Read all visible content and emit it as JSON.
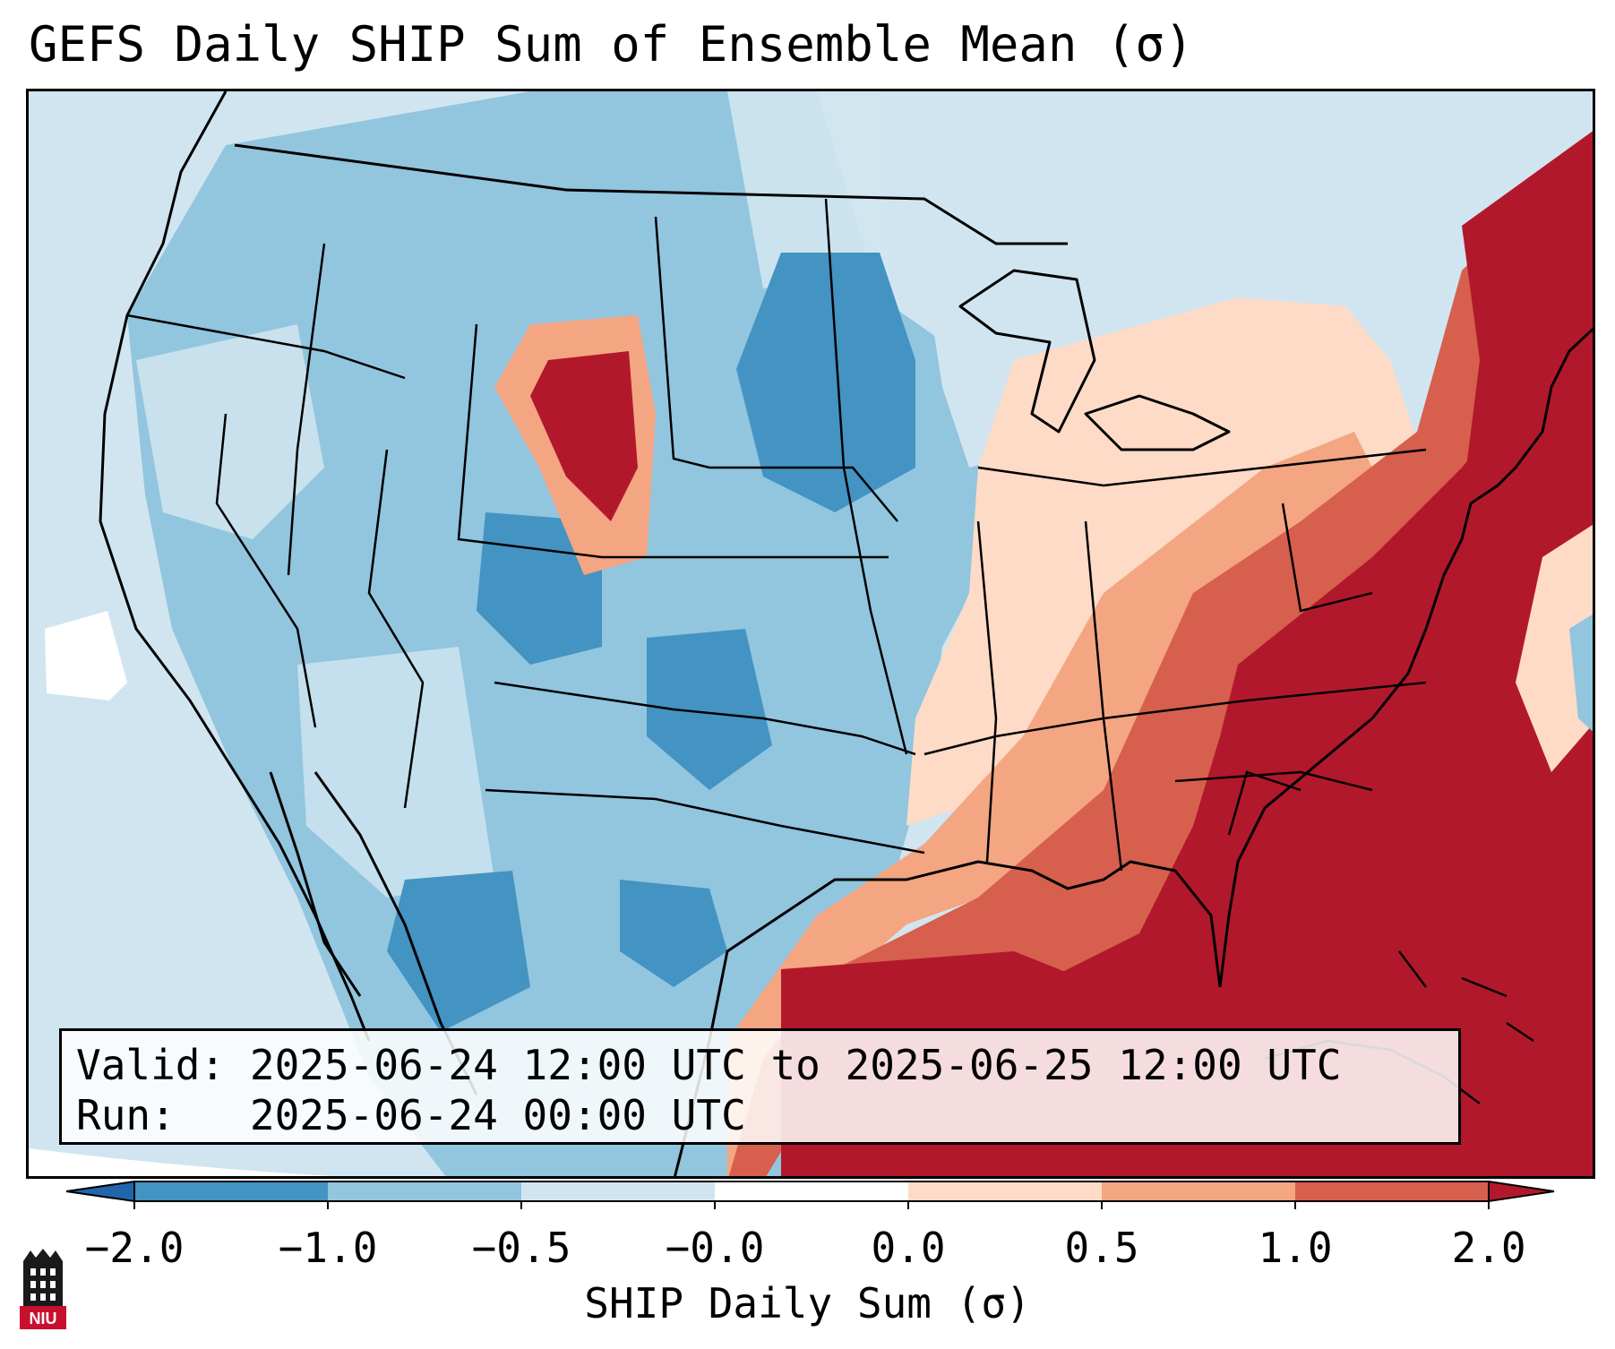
{
  "title": "GEFS Daily SHIP Sum of Ensemble Mean (σ)",
  "info": {
    "valid_label": "Valid:",
    "valid_value": "2025-06-24 12:00 UTC to 2025-06-25 12:00 UTC",
    "run_label": "Run:",
    "run_value": "2025-06-24 00:00 UTC"
  },
  "colorbar": {
    "label": "SHIP Daily Sum (σ)",
    "ticks": [
      "−2.0",
      "−1.0",
      "−0.5",
      "−0.0",
      "0.0",
      "0.5",
      "1.0",
      "2.0"
    ],
    "colors": [
      "#2166ac",
      "#4393c3",
      "#92c5de",
      "#d1e5f0",
      "#ffffff",
      "#fddbc7",
      "#f4a582",
      "#d6604d",
      "#b2182b"
    ]
  },
  "logo_text": "NIU",
  "colors": {
    "deep_blue": "#4393c3",
    "mid_blue": "#92c5de",
    "light_blue": "#d1e5f0",
    "light_red": "#fddbc7",
    "salmon": "#f4a582",
    "red": "#d6604d",
    "dark_red": "#b2182b"
  }
}
